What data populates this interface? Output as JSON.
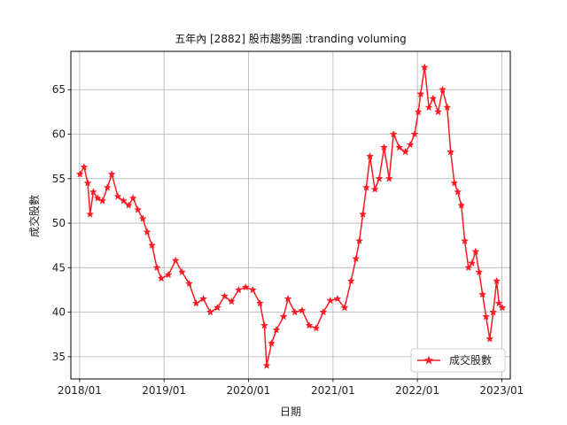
{
  "chart_data": {
    "type": "line",
    "title": "五年內 [2882] 股市趨勢圖 :tranding voluming",
    "xlabel": "日期",
    "ylabel": "成交股數",
    "xlim": [
      "2017-11-24",
      "2023-02-07"
    ],
    "ylim": [
      32.5,
      69.3
    ],
    "x_ticks": [
      "2018/01",
      "2019/01",
      "2020/01",
      "2021/01",
      "2022/01",
      "2023/01"
    ],
    "y_ticks": [
      35,
      40,
      45,
      50,
      55,
      60,
      65
    ],
    "grid": true,
    "legend_position": "lower-right",
    "series": [
      {
        "name": "成交股數",
        "color": "#ff1a22",
        "marker": "star",
        "x": [
          "2018-01-02",
          "2018-01-20",
          "2018-02-05",
          "2018-02-15",
          "2018-03-01",
          "2018-03-20",
          "2018-04-10",
          "2018-05-01",
          "2018-05-20",
          "2018-06-15",
          "2018-07-10",
          "2018-08-01",
          "2018-08-20",
          "2018-09-10",
          "2018-10-01",
          "2018-10-20",
          "2018-11-10",
          "2018-12-01",
          "2018-12-20",
          "2019-01-20",
          "2019-02-20",
          "2019-03-20",
          "2019-04-20",
          "2019-05-20",
          "2019-06-20",
          "2019-07-20",
          "2019-08-20",
          "2019-09-20",
          "2019-10-20",
          "2019-11-20",
          "2019-12-20",
          "2020-01-20",
          "2020-02-20",
          "2020-03-10",
          "2020-03-20",
          "2020-04-10",
          "2020-05-01",
          "2020-06-01",
          "2020-06-20",
          "2020-07-20",
          "2020-08-20",
          "2020-09-20",
          "2020-10-20",
          "2020-11-20",
          "2020-12-20",
          "2021-01-20",
          "2021-02-20",
          "2021-03-20",
          "2021-04-10",
          "2021-04-25",
          "2021-05-10",
          "2021-05-25",
          "2021-06-10",
          "2021-07-01",
          "2021-07-20",
          "2021-08-10",
          "2021-09-01",
          "2021-09-20",
          "2021-10-15",
          "2021-11-10",
          "2021-12-01",
          "2021-12-20",
          "2022-01-05",
          "2022-01-15",
          "2022-02-01",
          "2022-02-20",
          "2022-03-10",
          "2022-04-01",
          "2022-04-20",
          "2022-05-10",
          "2022-05-25",
          "2022-06-10",
          "2022-06-25",
          "2022-07-10",
          "2022-07-25",
          "2022-08-10",
          "2022-08-25",
          "2022-09-10",
          "2022-09-25",
          "2022-10-10",
          "2022-10-25",
          "2022-11-10",
          "2022-11-25",
          "2022-12-10",
          "2022-12-20",
          "2023-01-03"
        ],
        "values": [
          55.5,
          56.3,
          54.5,
          51.0,
          53.5,
          52.8,
          52.5,
          54.0,
          55.5,
          53.0,
          52.5,
          52.0,
          52.8,
          51.5,
          50.5,
          49.0,
          47.5,
          45.0,
          43.8,
          44.2,
          45.8,
          44.5,
          43.2,
          41.0,
          41.5,
          40.0,
          40.5,
          41.8,
          41.2,
          42.5,
          42.8,
          42.5,
          41.0,
          38.5,
          34.0,
          36.5,
          38.0,
          39.5,
          41.5,
          40.0,
          40.2,
          38.5,
          38.2,
          40.0,
          41.3,
          41.5,
          40.5,
          43.5,
          46.0,
          48.0,
          51.0,
          54.0,
          57.5,
          53.8,
          55.0,
          58.5,
          55.0,
          60.0,
          58.5,
          58.0,
          58.8,
          60.0,
          62.5,
          64.5,
          67.5,
          63.0,
          64.0,
          62.5,
          65.0,
          63.0,
          58.0,
          54.5,
          53.5,
          52.0,
          48.0,
          45.0,
          45.5,
          46.8,
          44.5,
          42.0,
          39.5,
          37.0,
          40.0,
          43.5,
          41.0,
          40.5
        ]
      }
    ]
  }
}
